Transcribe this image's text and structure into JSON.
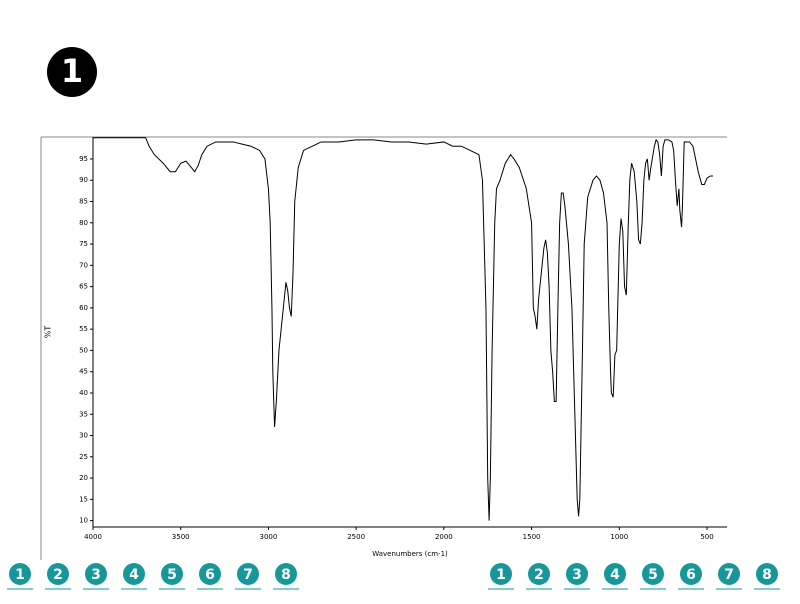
{
  "header": {
    "badge": "1"
  },
  "nav": {
    "left": [
      "1",
      "2",
      "3",
      "4",
      "5",
      "6",
      "7",
      "8"
    ],
    "right": [
      "1",
      "2",
      "3",
      "4",
      "5",
      "6",
      "7",
      "8"
    ]
  },
  "chart_data": {
    "type": "line",
    "xlabel": "Wavenumbers (cm-1)",
    "ylabel": "%T",
    "color": "#000000",
    "xlim": [
      4000,
      386
    ],
    "ylim": [
      8.5,
      100
    ],
    "xticks": [
      4000,
      3500,
      3000,
      2500,
      2000,
      1500,
      1000,
      500
    ],
    "yticks": [
      10,
      15,
      20,
      25,
      30,
      35,
      40,
      45,
      50,
      55,
      60,
      65,
      70,
      75,
      80,
      85,
      90,
      95
    ],
    "x": [
      4000,
      3700,
      3680,
      3650,
      3600,
      3560,
      3530,
      3500,
      3470,
      3440,
      3420,
      3400,
      3380,
      3350,
      3300,
      3250,
      3200,
      3150,
      3100,
      3050,
      3020,
      3000,
      2990,
      2980,
      2975,
      2965,
      2955,
      2940,
      2920,
      2900,
      2890,
      2880,
      2870,
      2860,
      2850,
      2830,
      2800,
      2750,
      2700,
      2600,
      2500,
      2400,
      2300,
      2200,
      2100,
      2000,
      1950,
      1900,
      1850,
      1800,
      1780,
      1760,
      1750,
      1742,
      1735,
      1725,
      1710,
      1700,
      1680,
      1650,
      1620,
      1600,
      1570,
      1530,
      1500,
      1490,
      1480,
      1470,
      1460,
      1450,
      1440,
      1430,
      1420,
      1410,
      1400,
      1390,
      1380,
      1370,
      1360,
      1350,
      1340,
      1330,
      1320,
      1310,
      1290,
      1270,
      1250,
      1240,
      1232,
      1225,
      1210,
      1200,
      1180,
      1150,
      1130,
      1110,
      1090,
      1070,
      1060,
      1050,
      1045,
      1035,
      1025,
      1015,
      1000,
      990,
      980,
      970,
      960,
      950,
      940,
      930,
      915,
      900,
      890,
      880,
      870,
      860,
      850,
      840,
      830,
      820,
      800,
      790,
      780,
      770,
      760,
      750,
      740,
      720,
      700,
      690,
      680,
      670,
      660,
      655,
      645,
      640,
      630,
      600,
      580,
      570,
      550,
      530,
      515,
      500,
      480,
      466
    ],
    "values": [
      100,
      100,
      98,
      96,
      94,
      92,
      92,
      94,
      94.5,
      93,
      92,
      93.5,
      96,
      98,
      99,
      99,
      99,
      98.5,
      98,
      97,
      95,
      88,
      80,
      60,
      45,
      32,
      38,
      50,
      58,
      66,
      64,
      60,
      58,
      68,
      85,
      93,
      97,
      98,
      99,
      99,
      99.5,
      99.5,
      99,
      99,
      98.5,
      99,
      98,
      98,
      97,
      96,
      90,
      60,
      20,
      10,
      20,
      50,
      80,
      88,
      90,
      94,
      96,
      95,
      93,
      88,
      80,
      60,
      58,
      55,
      62,
      66,
      70,
      74,
      76,
      73,
      65,
      50,
      45,
      38,
      38,
      60,
      80,
      87,
      87,
      84,
      75,
      60,
      30,
      15,
      11,
      15,
      50,
      75,
      86,
      90,
      91,
      90,
      87,
      80,
      60,
      45,
      40,
      39,
      49,
      50,
      75,
      81,
      78,
      65,
      63,
      78,
      90,
      94,
      92,
      85,
      76,
      75,
      80,
      90,
      94,
      95,
      90,
      93,
      98,
      99.5,
      99,
      96,
      91,
      98,
      99.5,
      99.5,
      99,
      97,
      90,
      84,
      88,
      83,
      79,
      84,
      99,
      99,
      98,
      96,
      92,
      89,
      89,
      90.5,
      91,
      91
    ]
  }
}
